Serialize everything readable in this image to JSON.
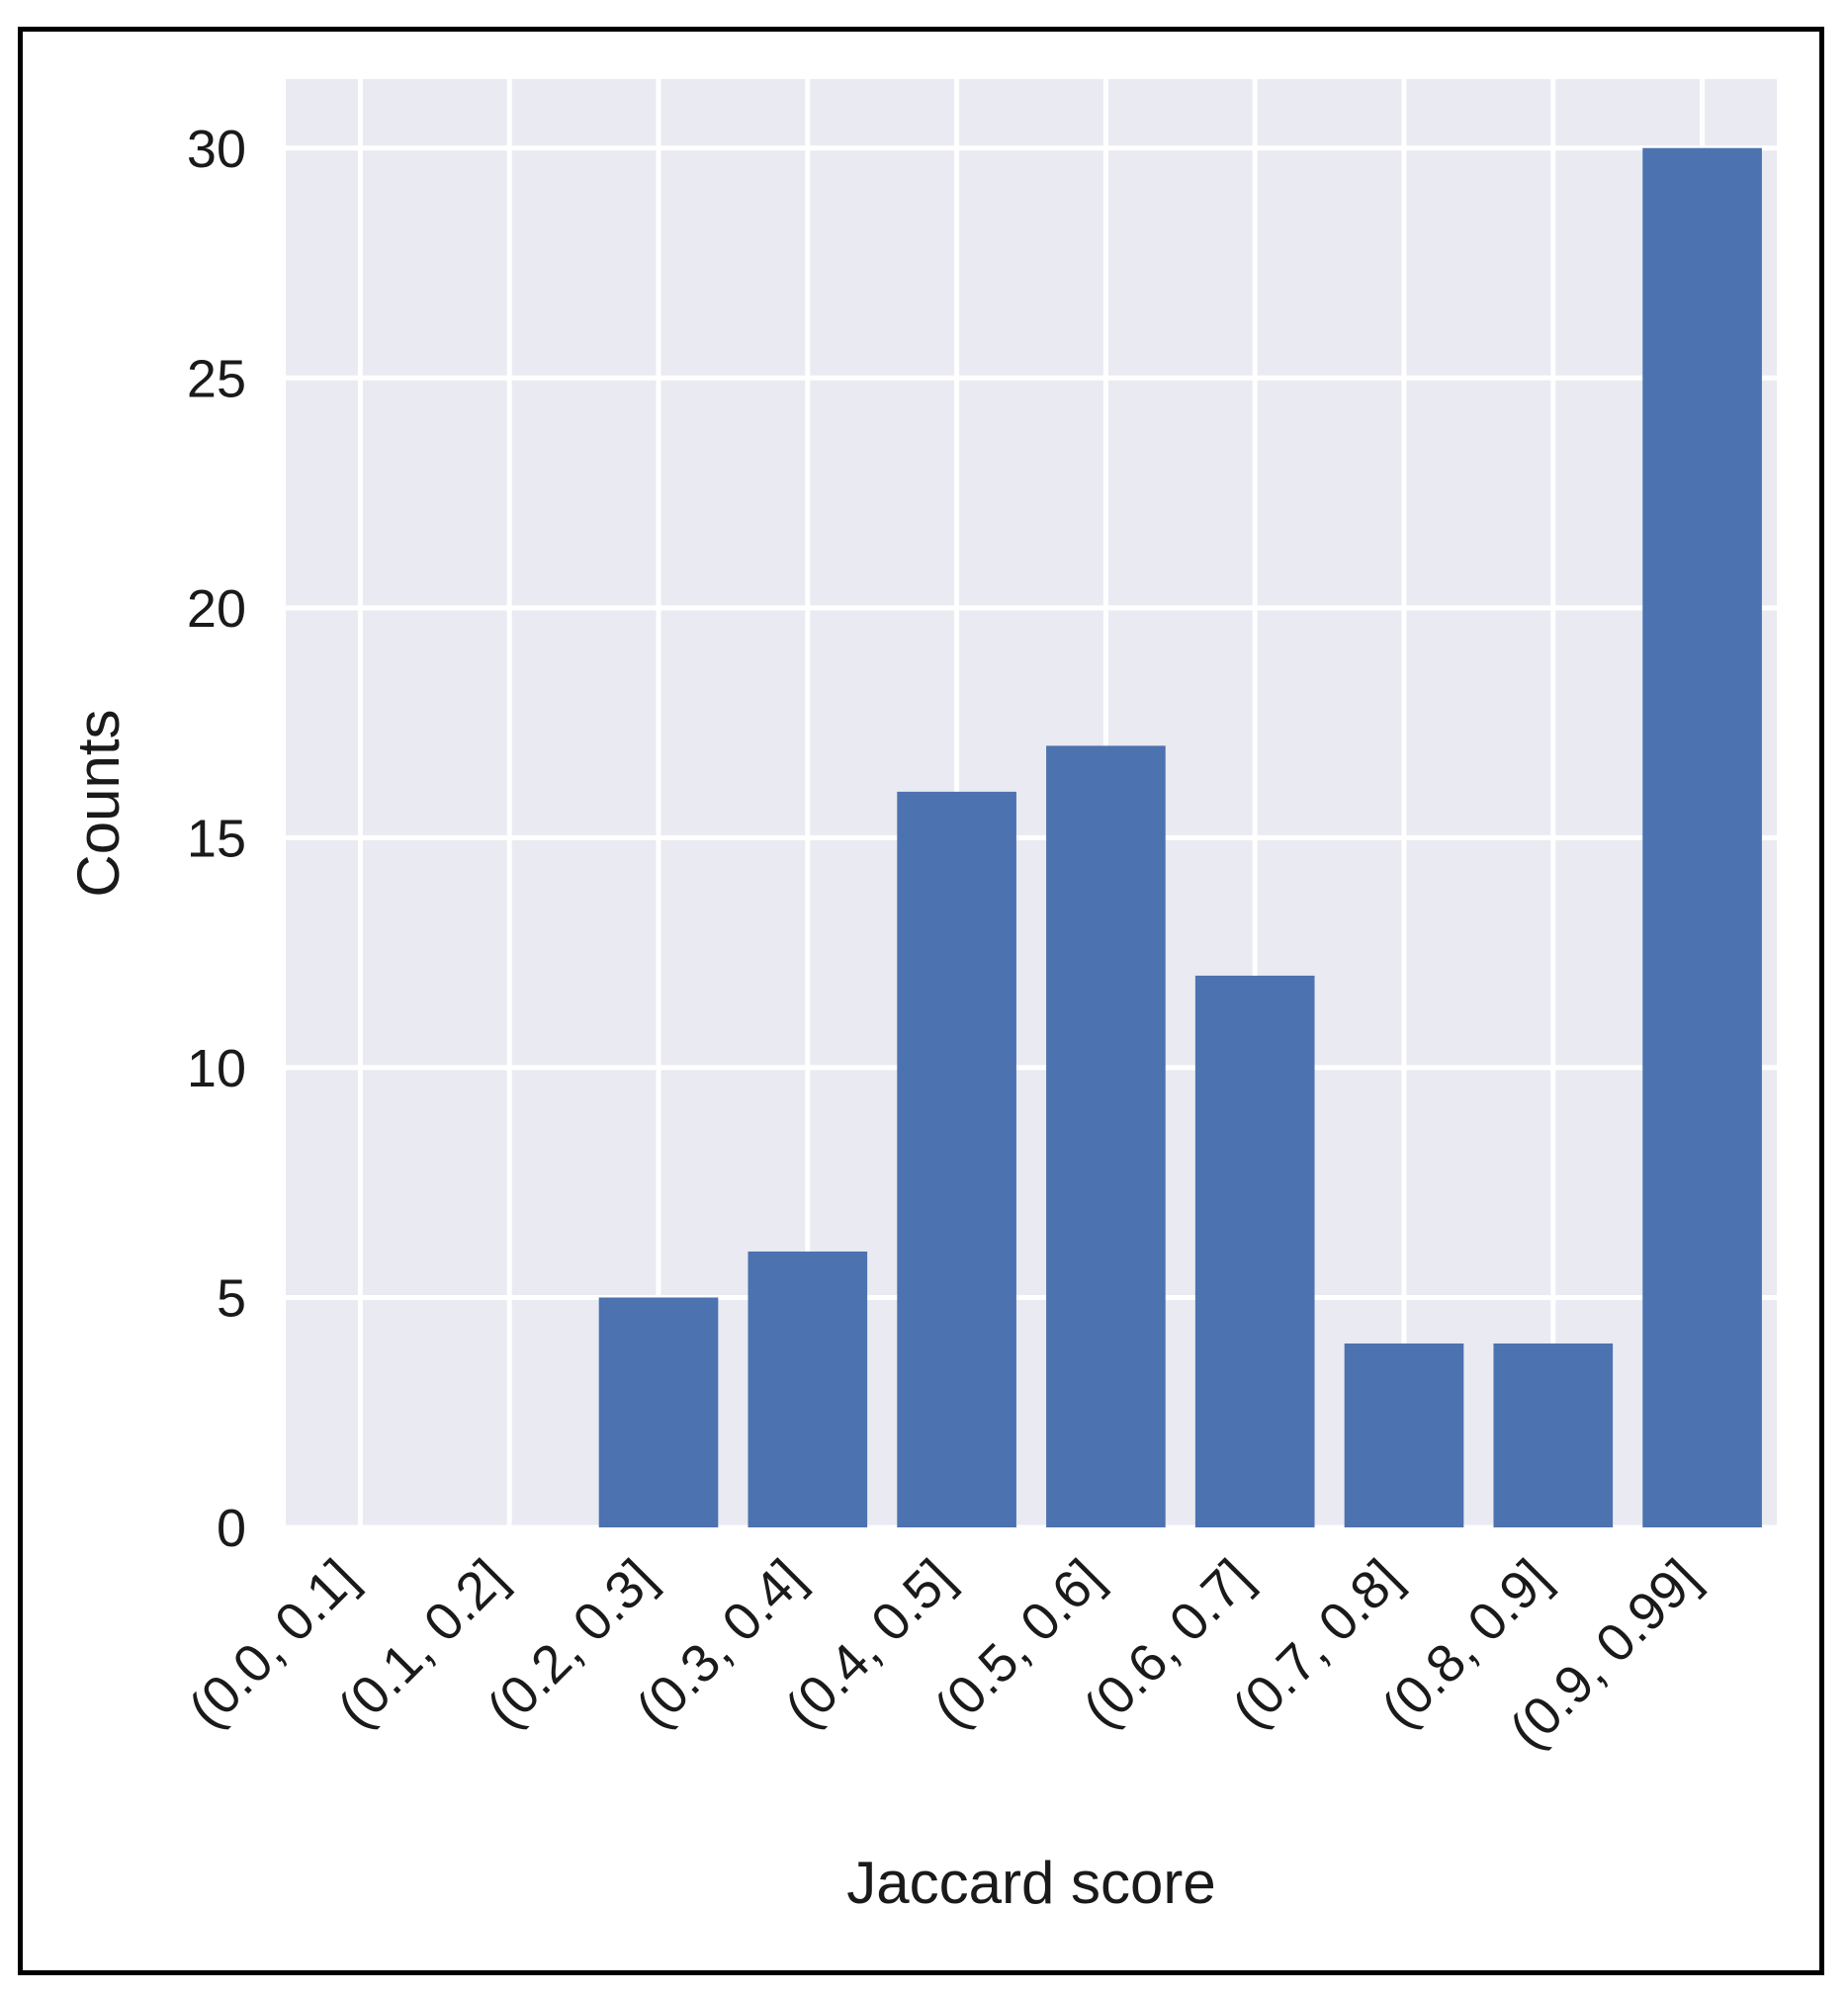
{
  "chart_data": {
    "type": "bar",
    "categories": [
      "(0.0, 0.1]",
      "(0.1, 0.2]",
      "(0.2, 0.3]",
      "(0.3, 0.4]",
      "(0.4, 0.5]",
      "(0.5, 0.6]",
      "(0.6, 0.7]",
      "(0.7, 0.8]",
      "(0.8, 0.9]",
      "(0.9, 0.99]"
    ],
    "values": [
      0,
      0,
      5,
      6,
      16,
      17,
      12,
      4,
      4,
      30
    ],
    "xlabel": "Jaccard score",
    "ylabel": "Counts",
    "ylim": [
      0,
      31.5
    ],
    "yticks": [
      0,
      5,
      10,
      15,
      20,
      25,
      30
    ],
    "grid": true,
    "colors": {
      "bar": "#4c72b0",
      "background": "#eaeaf2",
      "grid": "#ffffff"
    }
  }
}
